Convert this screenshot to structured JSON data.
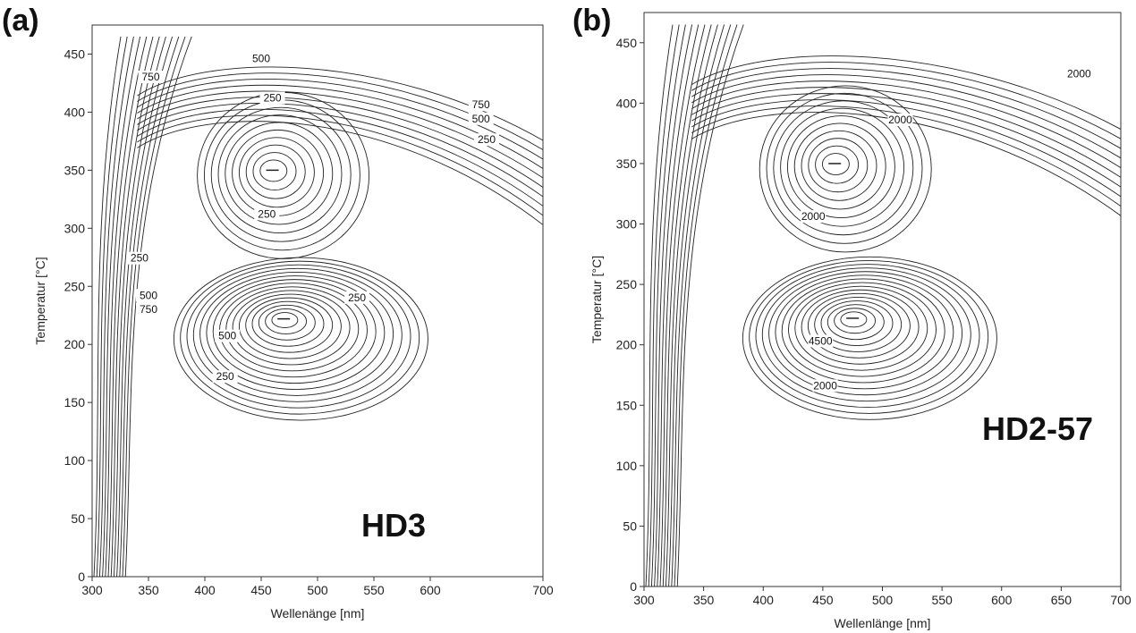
{
  "panels": {
    "a": {
      "letter": "(a)"
    },
    "b": {
      "letter": "(b)"
    }
  },
  "chart_data": [
    {
      "type": "contour",
      "panel": "a",
      "sample_label": "HD3",
      "xlabel": "Wellenänge [nm]",
      "ylabel": "Temperatur [°C]",
      "xlim": [
        300,
        700
      ],
      "ylim": [
        0,
        475
      ],
      "x_ticks": [
        300,
        350,
        400,
        450,
        500,
        550,
        600,
        700
      ],
      "y_ticks": [
        0,
        50,
        100,
        150,
        200,
        250,
        300,
        350,
        400,
        450
      ],
      "grid": false,
      "contour_labels": [
        {
          "text": "500",
          "x": 450,
          "y": 444
        },
        {
          "text": "750",
          "x": 352,
          "y": 428
        },
        {
          "text": "250",
          "x": 460,
          "y": 410
        },
        {
          "text": "750",
          "x": 645,
          "y": 404
        },
        {
          "text": "500",
          "x": 645,
          "y": 392
        },
        {
          "text": "250",
          "x": 650,
          "y": 374
        },
        {
          "text": "250",
          "x": 455,
          "y": 310
        },
        {
          "text": "250",
          "x": 342,
          "y": 272
        },
        {
          "text": "500",
          "x": 350,
          "y": 240
        },
        {
          "text": "750",
          "x": 350,
          "y": 228
        },
        {
          "text": "250",
          "x": 535,
          "y": 238
        },
        {
          "text": "500",
          "x": 420,
          "y": 205
        },
        {
          "text": "250",
          "x": 418,
          "y": 170
        }
      ],
      "maxima": [
        {
          "x": 460,
          "y": 350
        },
        {
          "x": 470,
          "y": 222
        }
      ]
    },
    {
      "type": "contour",
      "panel": "b",
      "sample_label": "HD2-57",
      "xlabel": "Wellenlänge [nm]",
      "ylabel": "Temperatur [°C]",
      "xlim": [
        300,
        700
      ],
      "ylim": [
        0,
        475
      ],
      "x_ticks": [
        300,
        350,
        400,
        450,
        500,
        550,
        600,
        650,
        700
      ],
      "y_ticks": [
        0,
        50,
        100,
        150,
        200,
        250,
        300,
        350,
        400,
        450
      ],
      "grid": false,
      "contour_labels": [
        {
          "text": "2000",
          "x": 665,
          "y": 422
        },
        {
          "text": "2000",
          "x": 515,
          "y": 384
        },
        {
          "text": "2000",
          "x": 442,
          "y": 304
        },
        {
          "text": "4500",
          "x": 448,
          "y": 201
        },
        {
          "text": "2000",
          "x": 452,
          "y": 164
        }
      ],
      "maxima": [
        {
          "x": 460,
          "y": 350
        },
        {
          "x": 475,
          "y": 222
        }
      ]
    }
  ]
}
